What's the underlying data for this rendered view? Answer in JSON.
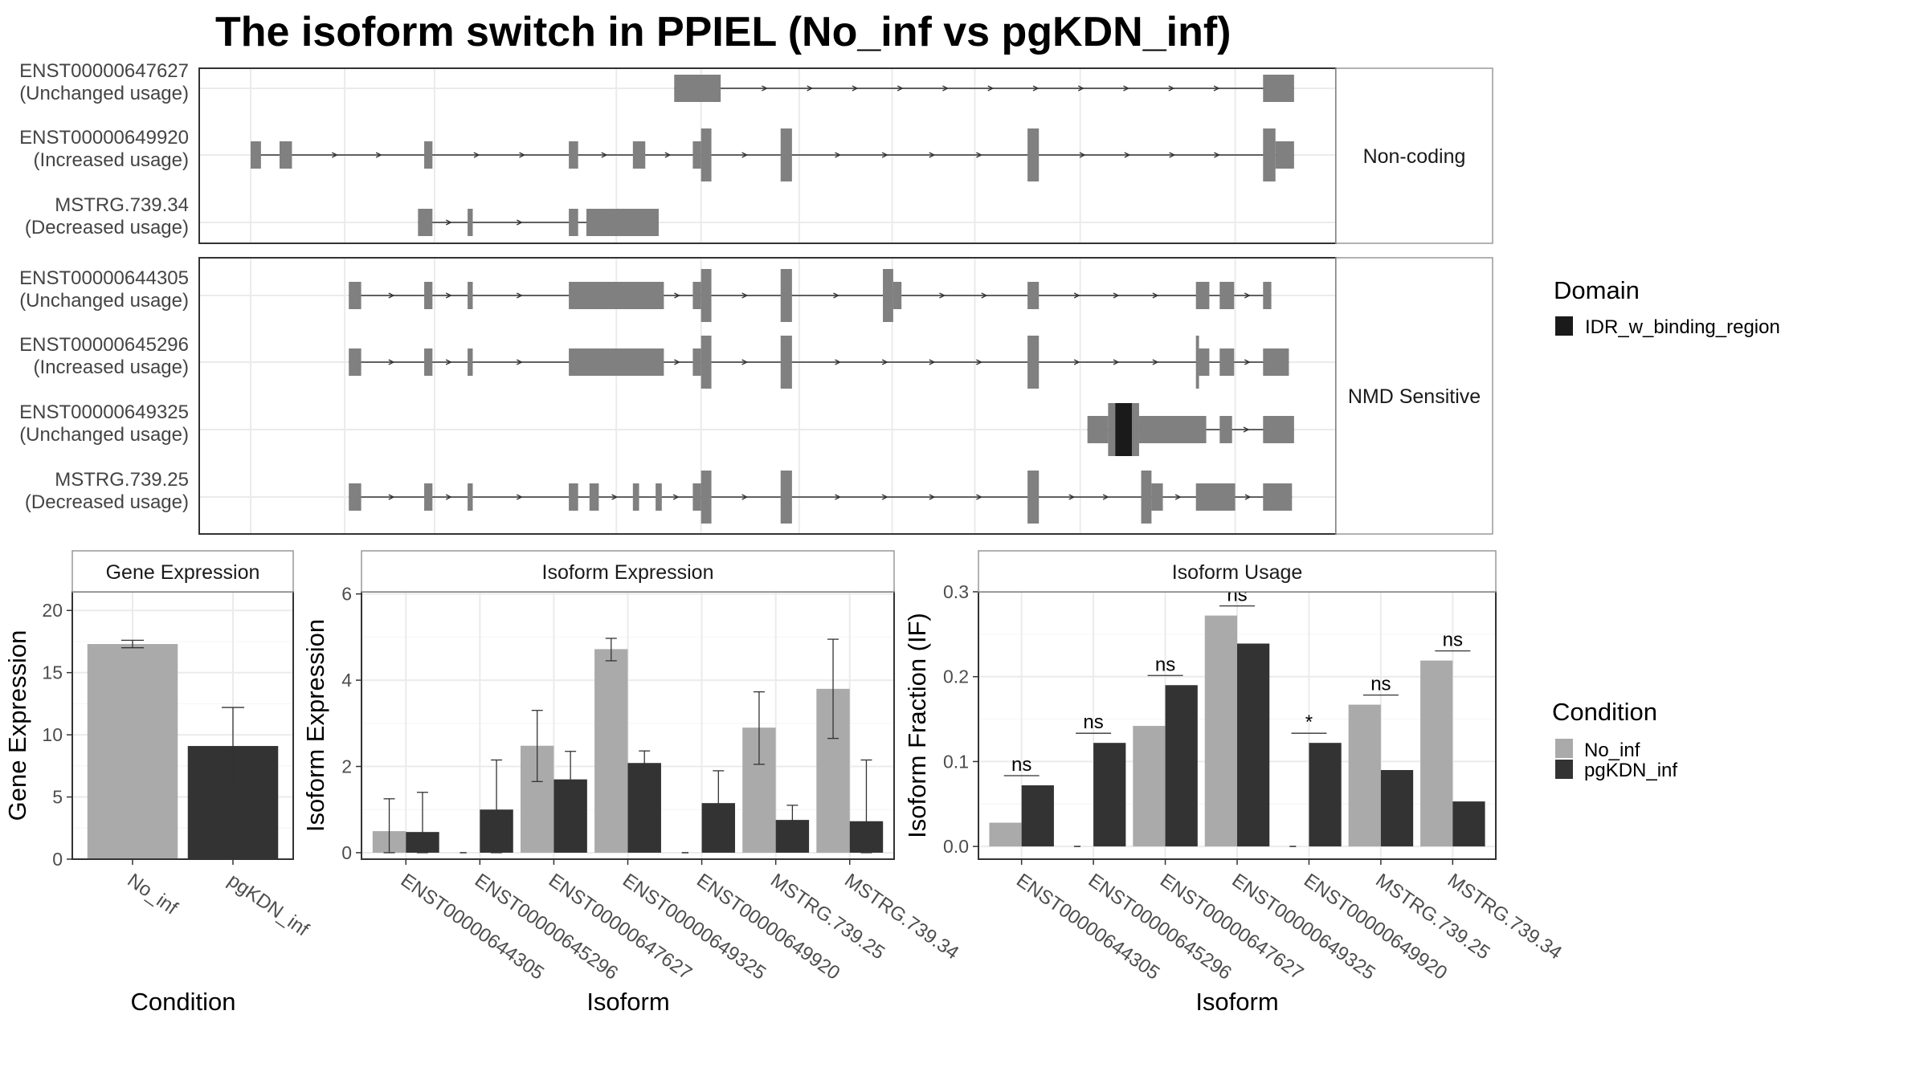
{
  "title": "The isoform switch in PPIEL (No_inf vs pgKDN_inf)",
  "colors": {
    "exon": "#808080",
    "domain": "#1a1a1a",
    "no_inf": "#aaaaaa",
    "pgkdn_inf": "#333333",
    "grid": "#ebebeb",
    "panel_border": "#333333",
    "strip_border": "#999999"
  },
  "structure": {
    "x_range": [
      0,
      1000
    ],
    "groups": [
      {
        "label": "Non-coding",
        "transcripts": [
          {
            "id": "ENST00000647627",
            "usage": "(Unchanged usage)",
            "exons": [
              [
                410,
                455,
                "thick"
              ],
              [
                980,
                1010,
                "thick"
              ]
            ],
            "domains": []
          },
          {
            "id": "ENST00000649920",
            "usage": "(Increased usage)",
            "exons": [
              [
                0,
                10,
                "thick"
              ],
              [
                28,
                40,
                "thick"
              ],
              [
                168,
                176,
                "thick"
              ],
              [
                308,
                317,
                "thick"
              ],
              [
                370,
                382,
                "thick"
              ],
              [
                428,
                436,
                "thick"
              ],
              [
                436,
                446,
                "tall"
              ],
              [
                513,
                524,
                "tall"
              ],
              [
                752,
                763,
                "tall"
              ],
              [
                980,
                992,
                "tall"
              ],
              [
                992,
                1010,
                "thick"
              ]
            ],
            "domains": []
          },
          {
            "id": "MSTRG.739.34",
            "usage": "(Decreased usage)",
            "exons": [
              [
                162,
                176,
                "thick"
              ],
              [
                210,
                215,
                "thick"
              ],
              [
                308,
                317,
                "thick"
              ],
              [
                325,
                395,
                "thick"
              ]
            ],
            "domains": []
          }
        ]
      },
      {
        "label": "NMD Sensitive",
        "transcripts": [
          {
            "id": "ENST00000644305",
            "usage": "(Unchanged usage)",
            "exons": [
              [
                95,
                107,
                "thick"
              ],
              [
                168,
                176,
                "thick"
              ],
              [
                210,
                215,
                "thick"
              ],
              [
                308,
                400,
                "thick"
              ],
              [
                428,
                436,
                "thick"
              ],
              [
                436,
                446,
                "tall"
              ],
              [
                513,
                524,
                "tall"
              ],
              [
                612,
                622,
                "tall"
              ],
              [
                622,
                630,
                "thick"
              ],
              [
                752,
                763,
                "thick"
              ],
              [
                915,
                928,
                "thick"
              ],
              [
                938,
                952,
                "thick"
              ],
              [
                980,
                988,
                "thick"
              ]
            ],
            "domains": []
          },
          {
            "id": "ENST00000645296",
            "usage": "(Increased usage)",
            "exons": [
              [
                95,
                107,
                "thick"
              ],
              [
                168,
                176,
                "thick"
              ],
              [
                210,
                215,
                "thick"
              ],
              [
                308,
                400,
                "thick"
              ],
              [
                428,
                436,
                "thick"
              ],
              [
                436,
                446,
                "tall"
              ],
              [
                513,
                524,
                "tall"
              ],
              [
                752,
                763,
                "tall"
              ],
              [
                915,
                918,
                "tall"
              ],
              [
                918,
                928,
                "thick"
              ],
              [
                938,
                952,
                "thick"
              ],
              [
                980,
                1005,
                "thick"
              ]
            ],
            "domains": []
          },
          {
            "id": "ENST00000649325",
            "usage": "(Unchanged usage)",
            "exons": [
              [
                810,
                830,
                "thick"
              ],
              [
                830,
                860,
                "tall"
              ],
              [
                860,
                925,
                "thick"
              ],
              [
                938,
                950,
                "thick"
              ],
              [
                980,
                1010,
                "thick"
              ]
            ],
            "domains": [
              [
                837,
                853
              ]
            ]
          },
          {
            "id": "MSTRG.739.25",
            "usage": "(Decreased usage)",
            "exons": [
              [
                95,
                107,
                "thick"
              ],
              [
                168,
                176,
                "thick"
              ],
              [
                210,
                215,
                "thick"
              ],
              [
                308,
                317,
                "thick"
              ],
              [
                328,
                337,
                "thick"
              ],
              [
                370,
                376,
                "thick"
              ],
              [
                392,
                398,
                "thick"
              ],
              [
                428,
                436,
                "thick"
              ],
              [
                436,
                446,
                "tall"
              ],
              [
                513,
                524,
                "tall"
              ],
              [
                752,
                763,
                "tall"
              ],
              [
                862,
                872,
                "tall"
              ],
              [
                872,
                883,
                "thick"
              ],
              [
                915,
                953,
                "thick"
              ],
              [
                980,
                1008,
                "thick"
              ]
            ],
            "domains": []
          }
        ]
      }
    ]
  },
  "legend_domain": {
    "title": "Domain",
    "items": [
      "IDR_w_binding_region"
    ]
  },
  "legend_condition": {
    "title": "Condition",
    "items": [
      "No_inf",
      "pgKDN_inf"
    ]
  },
  "chart_data": [
    {
      "type": "bar",
      "title": "Gene Expression",
      "xlabel": "Condition",
      "ylabel": "Gene Expression",
      "categories": [
        "No_inf",
        "pgKDN_inf"
      ],
      "values": [
        17.3,
        9.1
      ],
      "error_low": [
        17.0,
        6.0
      ],
      "error_high": [
        17.6,
        12.2
      ],
      "ylim": [
        0,
        21.5
      ],
      "yticks": [
        0,
        5,
        10,
        15,
        20
      ]
    },
    {
      "type": "bar",
      "title": "Isoform Expression",
      "xlabel": "Isoform",
      "ylabel": "Isoform Expression",
      "categories": [
        "ENST00000644305",
        "ENST00000645296",
        "ENST00000647627",
        "ENST00000649325",
        "ENST00000649920",
        "MSTRG.739.25",
        "MSTRG.739.34"
      ],
      "series": [
        {
          "name": "No_inf",
          "values": [
            0.5,
            0.0,
            2.48,
            4.72,
            0.0,
            2.9,
            3.8
          ],
          "error_low": [
            0.0,
            0.0,
            1.65,
            4.45,
            0.0,
            2.05,
            2.65
          ],
          "error_high": [
            1.25,
            0.0,
            3.3,
            4.97,
            0.0,
            3.73,
            4.95
          ]
        },
        {
          "name": "pgKDN_inf",
          "values": [
            0.48,
            1.0,
            1.7,
            2.08,
            1.15,
            0.76,
            0.73
          ],
          "error_low": [
            0.0,
            0.0,
            1.03,
            1.82,
            0.4,
            0.45,
            0.0
          ],
          "error_high": [
            1.4,
            2.15,
            2.35,
            2.36,
            1.9,
            1.1,
            2.15
          ]
        }
      ],
      "ylim": [
        -0.15,
        6.05
      ],
      "yticks": [
        0,
        2,
        4,
        6
      ]
    },
    {
      "type": "bar",
      "title": "Isoform Usage",
      "xlabel": "Isoform",
      "ylabel": "Isoform Fraction (IF)",
      "categories": [
        "ENST00000644305",
        "ENST00000645296",
        "ENST00000647627",
        "ENST00000649325",
        "ENST00000649920",
        "MSTRG.739.25",
        "MSTRG.739.34"
      ],
      "series": [
        {
          "name": "No_inf",
          "values": [
            0.028,
            0.0,
            0.142,
            0.272,
            0.0,
            0.167,
            0.219
          ]
        },
        {
          "name": "pgKDN_inf",
          "values": [
            0.072,
            0.122,
            0.19,
            0.239,
            0.122,
            0.09,
            0.053
          ]
        }
      ],
      "significance": [
        "ns",
        "ns",
        "ns",
        "ns",
        "*",
        "ns",
        "ns"
      ],
      "ylim": [
        -0.015,
        0.3
      ],
      "yticks": [
        0.0,
        0.1,
        0.2,
        0.3
      ],
      "ytick_labels": [
        "0.0",
        "0.1",
        "0.2",
        "0.3"
      ]
    }
  ]
}
